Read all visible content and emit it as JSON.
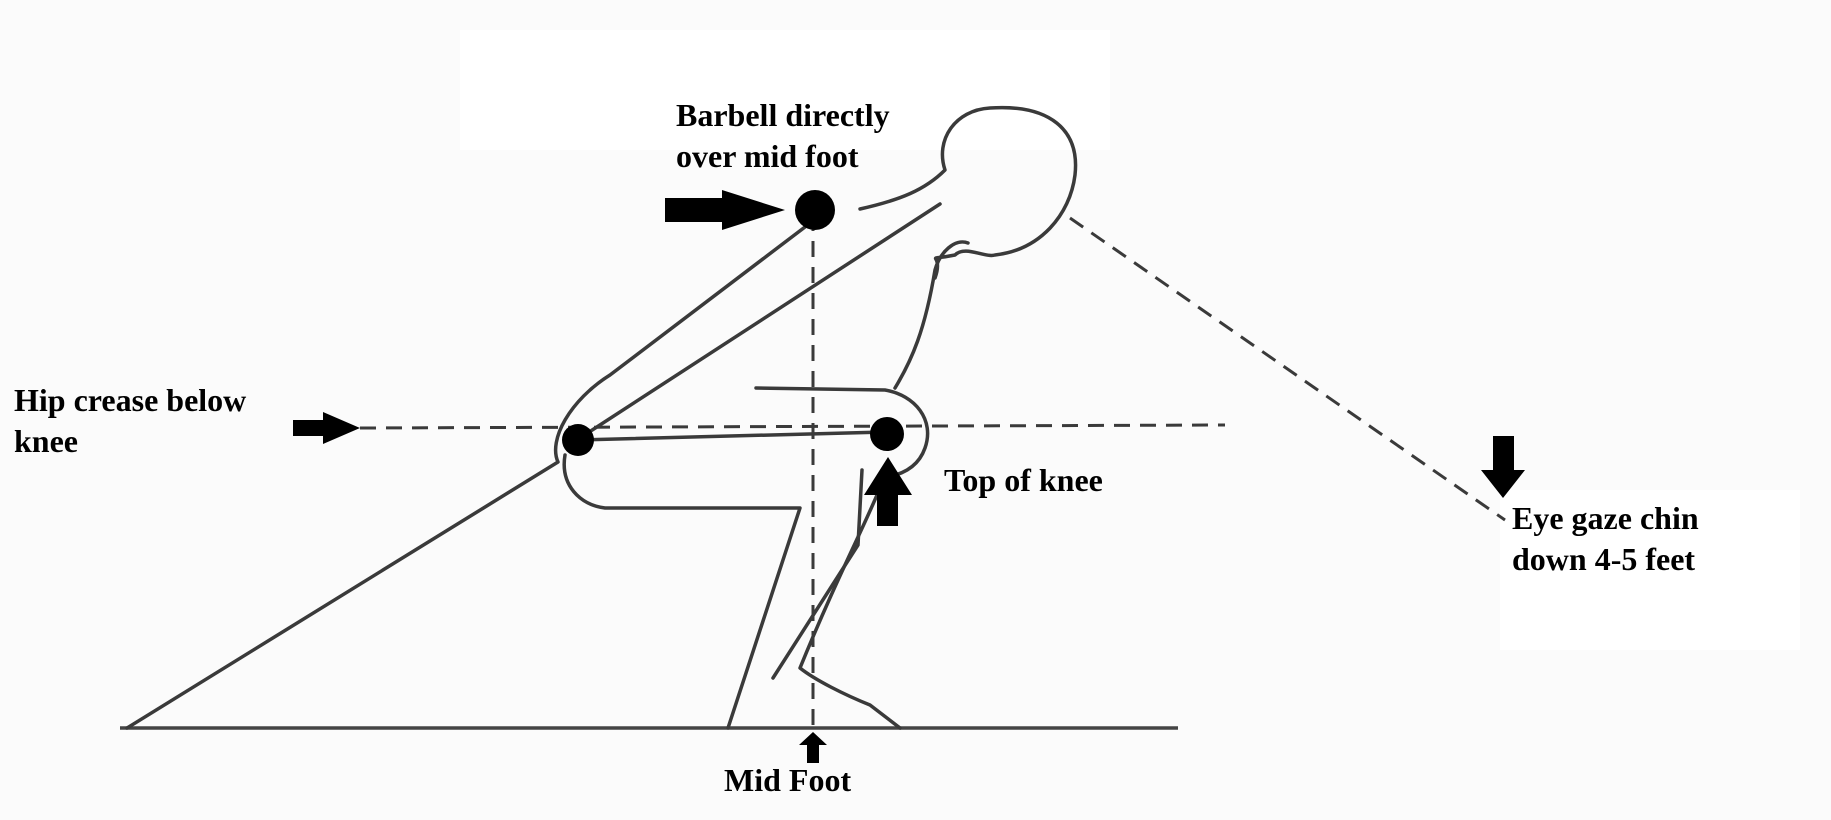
{
  "labels": {
    "barbell": [
      "Barbell directly",
      "over mid foot"
    ],
    "hip": [
      "Hip crease below",
      "knee"
    ],
    "knee": [
      "Top of knee"
    ],
    "eye": [
      "Eye gaze chin",
      "down 4-5 feet"
    ],
    "midfoot": [
      "Mid Foot"
    ]
  }
}
